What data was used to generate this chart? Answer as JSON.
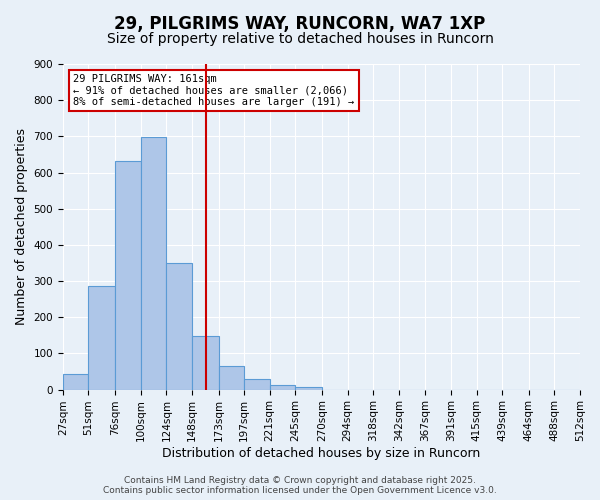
{
  "title": "29, PILGRIMS WAY, RUNCORN, WA7 1XP",
  "subtitle": "Size of property relative to detached houses in Runcorn",
  "bar_values": [
    43,
    285,
    632,
    697,
    350,
    147,
    65,
    30,
    12,
    8,
    0,
    0,
    0,
    0,
    0,
    0,
    0,
    0,
    0,
    0
  ],
  "bin_edges": [
    27,
    51,
    76,
    100,
    124,
    148,
    173,
    197,
    221,
    245,
    270,
    294,
    318,
    342,
    367,
    391,
    415,
    439,
    464,
    488,
    512
  ],
  "tick_labels": [
    "27sqm",
    "51sqm",
    "76sqm",
    "100sqm",
    "124sqm",
    "148sqm",
    "173sqm",
    "197sqm",
    "221sqm",
    "245sqm",
    "270sqm",
    "294sqm",
    "318sqm",
    "342sqm",
    "367sqm",
    "391sqm",
    "415sqm",
    "439sqm",
    "464sqm",
    "488sqm",
    "512sqm"
  ],
  "xlabel": "Distribution of detached houses by size in Runcorn",
  "ylabel": "Number of detached properties",
  "ylim": [
    0,
    900
  ],
  "yticks": [
    0,
    100,
    200,
    300,
    400,
    500,
    600,
    700,
    800,
    900
  ],
  "bar_color": "#aec6e8",
  "bar_edgecolor": "#5b9bd5",
  "vline_x": 161,
  "vline_color": "#cc0000",
  "annotation_lines": [
    "29 PILGRIMS WAY: 161sqm",
    "← 91% of detached houses are smaller (2,066)",
    "8% of semi-detached houses are larger (191) →"
  ],
  "annotation_box_color": "#ffffff",
  "annotation_box_edgecolor": "#cc0000",
  "background_color": "#e8f0f8",
  "grid_color": "#ffffff",
  "footer_lines": [
    "Contains HM Land Registry data © Crown copyright and database right 2025.",
    "Contains public sector information licensed under the Open Government Licence v3.0."
  ],
  "title_fontsize": 12,
  "subtitle_fontsize": 10,
  "axis_label_fontsize": 9,
  "tick_fontsize": 7.5,
  "footer_fontsize": 6.5
}
